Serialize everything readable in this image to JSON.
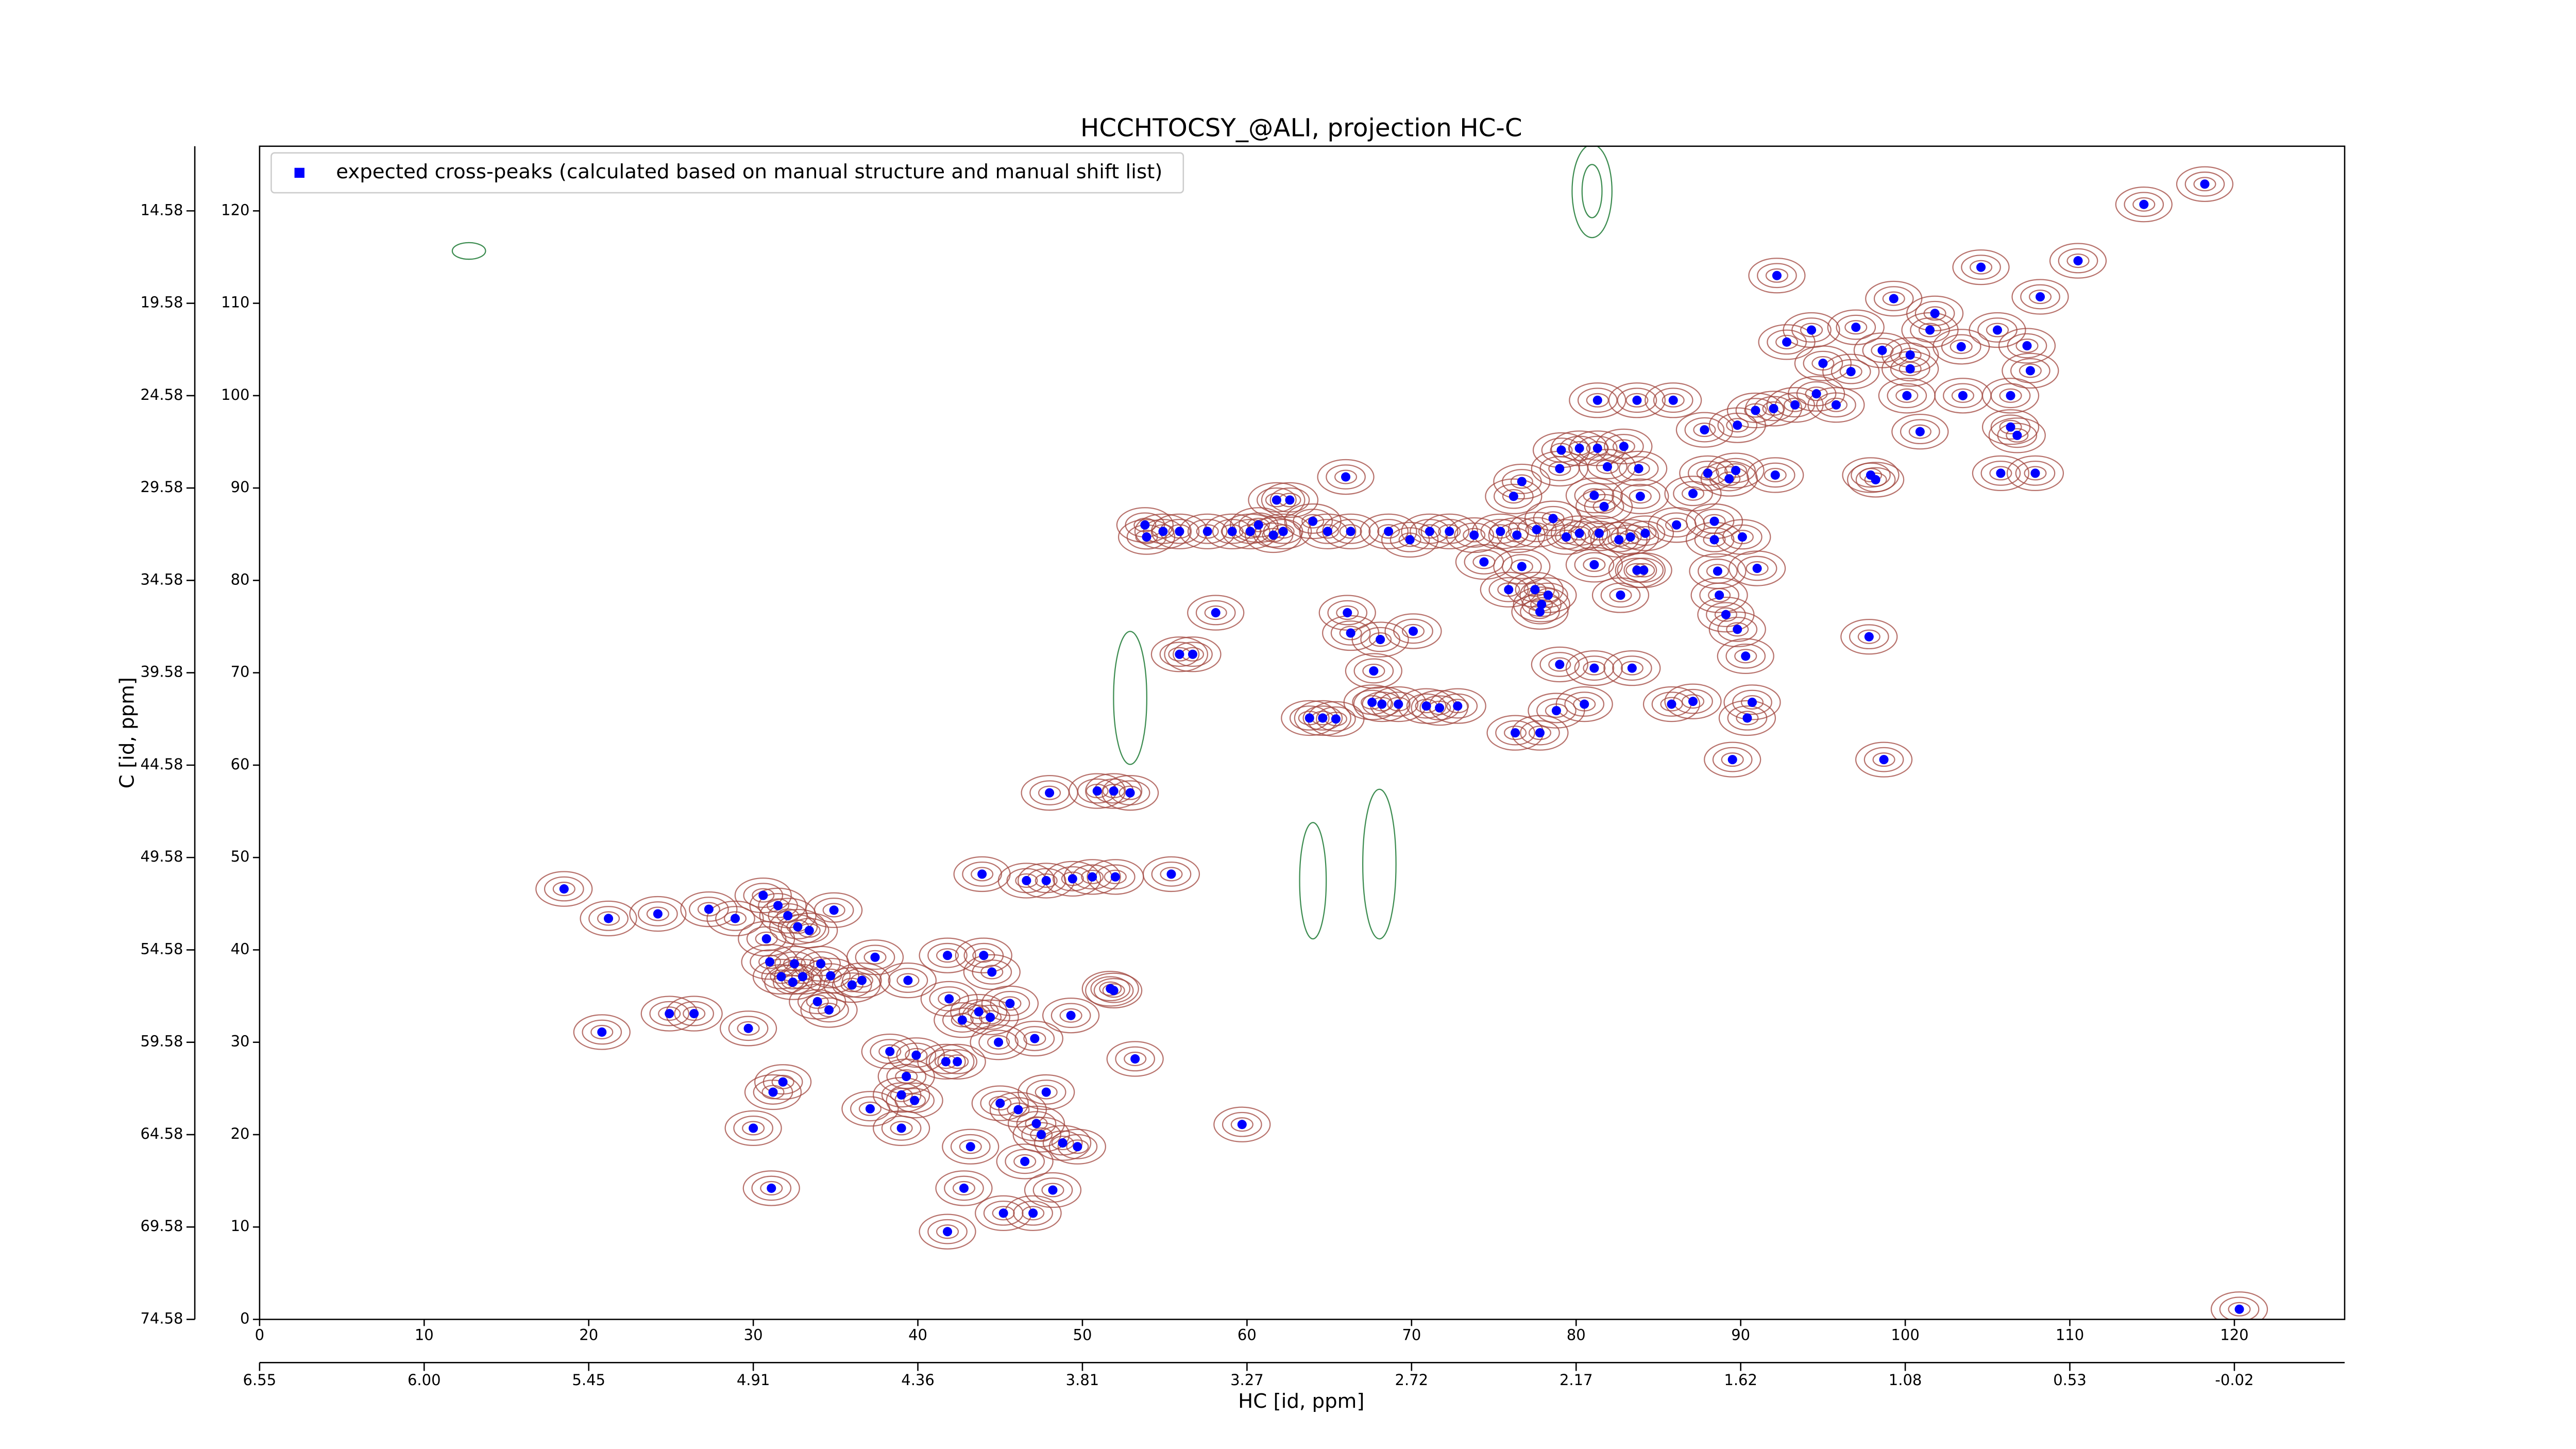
{
  "chart_data": {
    "type": "scatter",
    "title": "HCCHTOCSY_@ALI, projection HC-C",
    "xlabel": "HC [id, ppm]",
    "ylabel": "C [id, ppm]",
    "legend": "upper left",
    "xlim": [
      0,
      126.7
    ],
    "ylim": [
      0,
      127
    ],
    "xticks": [
      0,
      10,
      20,
      30,
      40,
      50,
      60,
      70,
      80,
      90,
      100,
      110,
      120
    ],
    "yticks": [
      0,
      10,
      20,
      30,
      40,
      50,
      60,
      70,
      80,
      90,
      100,
      110,
      120
    ],
    "x2ticks": [
      {
        "value": 0,
        "label": "6.55"
      },
      {
        "value": 10,
        "label": "6.00"
      },
      {
        "value": 20,
        "label": "5.45"
      },
      {
        "value": 30,
        "label": "4.91"
      },
      {
        "value": 40,
        "label": "4.36"
      },
      {
        "value": 50,
        "label": "3.81"
      },
      {
        "value": 60,
        "label": "3.27"
      },
      {
        "value": 70,
        "label": "2.72"
      },
      {
        "value": 80,
        "label": "2.17"
      },
      {
        "value": 90,
        "label": "1.62"
      },
      {
        "value": 100,
        "label": "1.08"
      },
      {
        "value": 110,
        "label": "0.53"
      },
      {
        "value": 120,
        "label": "-0.02"
      }
    ],
    "y2ticks": [
      {
        "value": 0,
        "label": "74.58"
      },
      {
        "value": 10,
        "label": "69.58"
      },
      {
        "value": 20,
        "label": "64.58"
      },
      {
        "value": 30,
        "label": "59.58"
      },
      {
        "value": 40,
        "label": "54.58"
      },
      {
        "value": 50,
        "label": "49.58"
      },
      {
        "value": 60,
        "label": "44.58"
      },
      {
        "value": 70,
        "label": "39.58"
      },
      {
        "value": 80,
        "label": "34.58"
      },
      {
        "value": 90,
        "label": "29.58"
      },
      {
        "value": 100,
        "label": "24.58"
      },
      {
        "value": 110,
        "label": "19.58"
      },
      {
        "value": 120,
        "label": "14.58"
      }
    ],
    "series": [
      {
        "name": "expected cross-peaks (calculated based on manual structure and manual shift list)",
        "color": "#0000ff",
        "x": [
          118.2,
          114.5,
          110.5,
          104.6,
          92.2,
          99.3,
          101.8,
          108.2,
          94.3,
          97.0,
          101.5,
          105.6,
          92.8,
          98.6,
          100.3,
          103.4,
          107.4,
          95.0,
          96.7,
          100.3,
          107.6,
          94.6,
          100.1,
          103.5,
          106.4,
          93.3,
          92.0,
          90.9,
          95.8,
          81.3,
          83.7,
          85.9,
          87.8,
          89.8,
          106.4,
          106.8,
          100.9,
          79.1,
          80.2,
          81.3,
          82.9,
          79.0,
          81.9,
          83.8,
          89.7,
          88.0,
          89.3,
          92.1,
          97.9,
          98.2,
          105.8,
          107.9,
          76.7,
          66.0,
          61.8,
          62.6,
          76.2,
          81.1,
          83.9,
          81.7,
          87.1,
          53.8,
          53.9,
          54.9,
          55.9,
          57.6,
          59.1,
          60.2,
          60.7,
          61.6,
          62.2,
          64.0,
          64.9,
          66.3,
          68.6,
          69.9,
          71.1,
          72.3,
          73.8,
          75.4,
          76.4,
          77.6,
          78.6,
          79.4,
          80.2,
          81.4,
          82.6,
          83.3,
          84.2,
          86.1,
          88.4,
          90.1,
          88.4,
          74.4,
          76.7,
          81.1,
          83.7,
          84.1,
          88.6,
          91.0,
          75.9,
          77.5,
          78.3,
          77.9,
          77.8,
          82.7,
          88.7,
          89.1,
          58.1,
          66.1,
          66.3,
          70.1,
          89.8,
          97.8,
          55.9,
          56.7,
          68.1,
          79.0,
          81.1,
          83.4,
          90.3,
          67.7,
          87.1,
          90.7,
          90.4,
          85.8,
          63.8,
          64.6,
          65.4,
          67.6,
          68.2,
          69.2,
          70.9,
          71.7,
          72.8,
          80.5,
          76.3,
          77.8,
          78.8,
          89.5,
          98.7,
          50.9,
          51.9,
          52.9,
          48.0,
          43.9,
          46.6,
          47.8,
          49.4,
          50.6,
          52.0,
          55.4,
          59.7,
          53.2,
          51.9,
          18.5,
          21.2,
          24.2,
          27.3,
          28.9,
          30.6,
          31.5,
          32.1,
          34.9,
          32.7,
          30.8,
          33.4,
          34.1,
          32.5,
          31.0,
          31.7,
          33.0,
          34.7,
          37.4,
          39.4,
          41.8,
          44.0,
          44.5,
          24.9,
          26.4,
          29.7,
          20.8,
          32.4,
          33.9,
          34.6,
          36.0,
          36.6,
          41.9,
          42.7,
          43.7,
          44.4,
          45.6,
          49.3,
          51.7,
          38.3,
          39.9,
          41.7,
          42.4,
          44.9,
          47.1,
          47.8,
          39.3,
          39.0,
          39.8,
          37.1,
          39.0,
          31.8,
          31.2,
          30.0,
          45.0,
          46.1,
          47.2,
          47.5,
          48.8,
          49.7,
          46.5,
          43.2,
          31.1,
          42.8,
          45.2,
          47.0,
          48.2,
          41.8,
          120.3
        ],
        "y": [
          122.9,
          120.7,
          114.6,
          113.9,
          113.0,
          110.5,
          108.9,
          110.7,
          107.1,
          107.4,
          107.1,
          107.1,
          105.8,
          104.9,
          104.4,
          105.3,
          105.4,
          103.5,
          102.6,
          102.9,
          102.7,
          100.2,
          100.0,
          100.0,
          100.0,
          99.0,
          98.6,
          98.4,
          99.0,
          99.5,
          99.5,
          99.5,
          96.3,
          96.8,
          96.6,
          95.7,
          96.1,
          94.1,
          94.3,
          94.3,
          94.5,
          92.1,
          92.3,
          92.1,
          91.9,
          91.6,
          91.0,
          91.4,
          91.4,
          90.9,
          91.6,
          91.6,
          90.7,
          91.2,
          88.7,
          88.7,
          89.1,
          89.2,
          89.1,
          88.0,
          89.4,
          86.0,
          84.7,
          85.3,
          85.3,
          85.3,
          85.3,
          85.3,
          86.0,
          84.9,
          85.3,
          86.4,
          85.3,
          85.3,
          85.3,
          84.4,
          85.3,
          85.3,
          84.9,
          85.3,
          84.9,
          85.5,
          86.7,
          84.7,
          85.1,
          85.1,
          84.4,
          84.7,
          85.1,
          86.0,
          86.4,
          84.7,
          84.4,
          82.0,
          81.5,
          81.7,
          81.1,
          81.1,
          81.0,
          81.3,
          79.0,
          79.0,
          78.4,
          77.4,
          76.6,
          78.4,
          78.4,
          76.3,
          76.5,
          76.5,
          74.3,
          74.5,
          74.7,
          73.9,
          72.0,
          72.0,
          73.6,
          70.9,
          70.5,
          70.5,
          71.8,
          70.2,
          66.9,
          66.8,
          65.1,
          66.6,
          65.1,
          65.1,
          65.0,
          66.8,
          66.6,
          66.6,
          66.4,
          66.2,
          66.4,
          66.6,
          63.5,
          63.5,
          65.9,
          60.6,
          60.6,
          57.2,
          57.2,
          57.0,
          57.0,
          48.2,
          47.5,
          47.5,
          47.7,
          47.9,
          47.9,
          48.2,
          21.1,
          28.2,
          35.6,
          46.6,
          43.4,
          43.9,
          44.4,
          43.4,
          45.9,
          44.8,
          43.7,
          44.3,
          42.5,
          41.2,
          42.1,
          38.5,
          38.5,
          38.7,
          37.1,
          37.1,
          37.2,
          39.2,
          36.7,
          39.4,
          39.4,
          37.6,
          33.1,
          33.1,
          31.5,
          31.1,
          36.5,
          34.4,
          33.5,
          36.2,
          36.7,
          34.7,
          32.4,
          33.3,
          32.7,
          34.2,
          32.9,
          35.8,
          29.0,
          28.6,
          27.9,
          27.9,
          30.0,
          30.4,
          24.6,
          26.3,
          24.3,
          23.7,
          22.8,
          20.7,
          25.7,
          24.6,
          20.7,
          23.4,
          22.7,
          21.2,
          20.0,
          19.1,
          18.7,
          17.1,
          18.7,
          14.2,
          14.2,
          11.5,
          11.5,
          14.0,
          9.5,
          1.1
        ]
      }
    ]
  }
}
